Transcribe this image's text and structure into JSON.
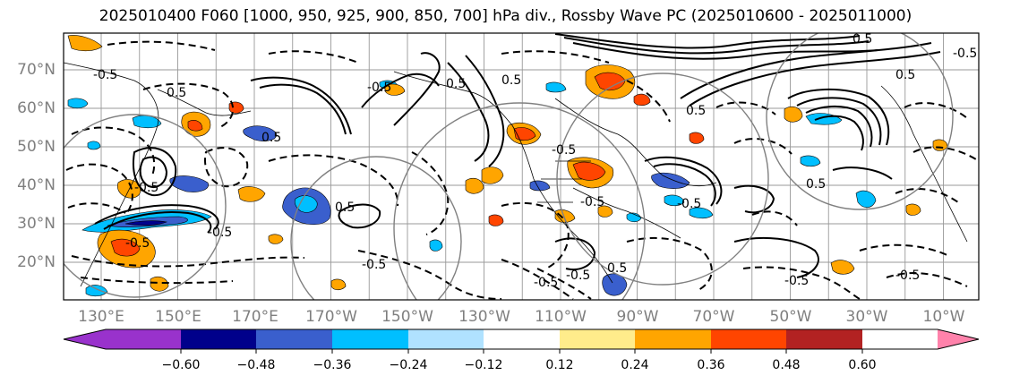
{
  "title": "2025010400 F060 [1000, 950, 925, 900, 850, 700] hPa div., Rossby Wave PC (2025010600 - 2025011000)",
  "map": {
    "projection": "cylindrical",
    "lat_labels": [
      "70°N",
      "60°N",
      "50°N",
      "40°N",
      "30°N",
      "20°N"
    ],
    "lon_labels": [
      "130°E",
      "150°E",
      "170°E",
      "170°W",
      "150°W",
      "130°W",
      "110°W",
      "90°W",
      "70°W",
      "50°W",
      "30°W",
      "10°W"
    ],
    "contour_labels": [
      "-0.5",
      "0.5",
      "-0.5",
      "0.5",
      "-0.5",
      "0.5",
      "-0.5",
      "0.5",
      "-0.5",
      "0.5",
      "-0.5",
      "-0.5",
      "0.5",
      "-0.5",
      "0.5",
      "-0.5",
      "-0.5",
      "0.5",
      "0.5",
      "-0.5",
      "0.5",
      "-0.5",
      "-0.5",
      "-0.5"
    ],
    "grid_color": "#999999",
    "outline_color": "#000000"
  },
  "colorbar": {
    "ticks": [
      "−0.60",
      "−0.48",
      "−0.36",
      "−0.24",
      "−0.12",
      "0.12",
      "0.24",
      "0.36",
      "0.48",
      "0.60"
    ],
    "colors": [
      "#9932cc",
      "#00008b",
      "#3a5fcd",
      "#00bfff",
      "#b0e2ff",
      "#ffffff",
      "#ffec8b",
      "#ffa500",
      "#ff4500",
      "#b22222",
      "#ff82ab"
    ],
    "extend": "both"
  }
}
